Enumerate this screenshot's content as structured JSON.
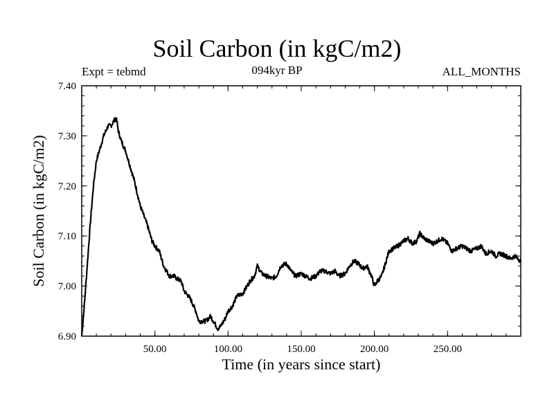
{
  "header": {
    "title": "Soil Carbon (in kgC/m2)",
    "experiment": "Expt = tebmd",
    "period": "094kyr BP",
    "months": "ALL_MONTHS"
  },
  "chart_data": {
    "type": "line",
    "title": "Soil Carbon (in kgC/m2)",
    "xlabel": "Time (in years since start)",
    "ylabel": "Soil Carbon (in kgC/m2)",
    "xlim": [
      0,
      300
    ],
    "ylim": [
      6.9,
      7.4
    ],
    "grid": false,
    "x_ticks": [
      50,
      100,
      150,
      200,
      250
    ],
    "x_tick_labels": [
      "50.00",
      "100.00",
      "150.00",
      "200.00",
      "250.00"
    ],
    "y_ticks": [
      6.9,
      7.0,
      7.1,
      7.2,
      7.3,
      7.4
    ],
    "y_tick_labels": [
      "6.90",
      "7.00",
      "7.10",
      "7.20",
      "7.30",
      "7.40"
    ],
    "series": [
      {
        "name": "Soil Carbon",
        "color": "#000000",
        "x": [
          0,
          2,
          4,
          6,
          8,
          10,
          12,
          15,
          18,
          20,
          22,
          23,
          24,
          25,
          27,
          30,
          33,
          36,
          40,
          45,
          48,
          50,
          53,
          56,
          60,
          63,
          65,
          68,
          70,
          73,
          75,
          78,
          80,
          82,
          85,
          88,
          90,
          93,
          95,
          98,
          100,
          103,
          106,
          110,
          113,
          115,
          118,
          120,
          123,
          126,
          130,
          133,
          136,
          140,
          143,
          146,
          150,
          153,
          156,
          160,
          163,
          166,
          170,
          173,
          176,
          180,
          183,
          186,
          189,
          192,
          195,
          198,
          200,
          202,
          205,
          208,
          210,
          213,
          216,
          220,
          223,
          226,
          229,
          231,
          234,
          237,
          240,
          243,
          246,
          250,
          253,
          256,
          260,
          263,
          266,
          270,
          273,
          276,
          280,
          283,
          286,
          290,
          293,
          296,
          300
        ],
        "values": [
          6.9,
          6.97,
          7.05,
          7.13,
          7.2,
          7.25,
          7.27,
          7.3,
          7.32,
          7.32,
          7.33,
          7.335,
          7.33,
          7.31,
          7.29,
          7.27,
          7.24,
          7.21,
          7.16,
          7.12,
          7.09,
          7.08,
          7.07,
          7.04,
          7.02,
          7.02,
          7.015,
          7.01,
          6.99,
          6.98,
          6.97,
          6.95,
          6.93,
          6.93,
          6.93,
          6.94,
          6.93,
          6.915,
          6.92,
          6.935,
          6.95,
          6.96,
          6.98,
          6.985,
          7.0,
          7.01,
          7.02,
          7.04,
          7.025,
          7.02,
          7.015,
          7.02,
          7.04,
          7.045,
          7.03,
          7.02,
          7.025,
          7.02,
          7.015,
          7.02,
          7.03,
          7.03,
          7.025,
          7.03,
          7.02,
          7.025,
          7.04,
          7.05,
          7.045,
          7.035,
          7.04,
          7.02,
          7.0,
          7.01,
          7.02,
          7.05,
          7.07,
          7.075,
          7.08,
          7.09,
          7.095,
          7.085,
          7.09,
          7.105,
          7.095,
          7.09,
          7.085,
          7.09,
          7.095,
          7.085,
          7.07,
          7.075,
          7.08,
          7.075,
          7.07,
          7.075,
          7.08,
          7.065,
          7.07,
          7.06,
          7.065,
          7.06,
          7.055,
          7.06,
          7.05
        ]
      }
    ]
  }
}
